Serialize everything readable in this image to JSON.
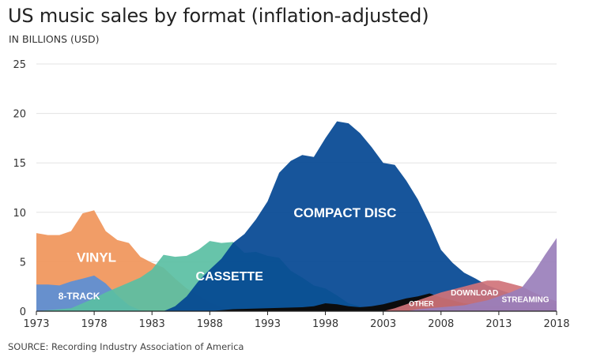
{
  "title": "US music sales by format (inflation-adjusted)",
  "subtitle": "IN BILLIONS (USD)",
  "source": "SOURCE: Recording Industry Association of America",
  "chart_data": {
    "type": "area",
    "stacked": false,
    "xlim": [
      1973,
      2018
    ],
    "ylim": [
      0,
      25
    ],
    "x_ticks": [
      "1973",
      "1978",
      "1983",
      "1988",
      "1993",
      "1998",
      "2003",
      "2008",
      "2013",
      "2018"
    ],
    "y_ticks": [
      "0",
      "5",
      "10",
      "15",
      "20",
      "25"
    ],
    "grid": true,
    "series": [
      {
        "name": "VINYL",
        "color": "#F0955A",
        "label_color": "#ffffff",
        "points": [
          [
            1973,
            7.9
          ],
          [
            1974,
            7.7
          ],
          [
            1975,
            7.7
          ],
          [
            1976,
            8.1
          ],
          [
            1977,
            9.9
          ],
          [
            1978,
            10.2
          ],
          [
            1979,
            8.1
          ],
          [
            1980,
            7.2
          ],
          [
            1981,
            6.9
          ],
          [
            1982,
            5.5
          ],
          [
            1983,
            4.9
          ],
          [
            1984,
            4.4
          ],
          [
            1985,
            3.3
          ],
          [
            1986,
            2.3
          ],
          [
            1987,
            1.6
          ],
          [
            1988,
            0.9
          ],
          [
            1989,
            0.4
          ],
          [
            1990,
            0.1
          ],
          [
            1991,
            0.0
          ],
          [
            2018,
            0.0
          ]
        ]
      },
      {
        "name": "8-TRACK",
        "color": "#5B8FD6",
        "label_color": "#ffffff",
        "points": [
          [
            1973,
            2.7
          ],
          [
            1974,
            2.7
          ],
          [
            1975,
            2.6
          ],
          [
            1976,
            3.0
          ],
          [
            1977,
            3.3
          ],
          [
            1978,
            3.6
          ],
          [
            1979,
            2.8
          ],
          [
            1980,
            1.6
          ],
          [
            1981,
            0.6
          ],
          [
            1982,
            0.1
          ],
          [
            1983,
            0.0
          ],
          [
            2018,
            0.0
          ]
        ]
      },
      {
        "name": "CASSETTE",
        "color": "#5ABFA3",
        "label_color": "#ffffff",
        "points": [
          [
            1973,
            0.0
          ],
          [
            1976,
            0.3
          ],
          [
            1977,
            0.8
          ],
          [
            1978,
            1.3
          ],
          [
            1979,
            1.9
          ],
          [
            1980,
            2.4
          ],
          [
            1981,
            2.9
          ],
          [
            1982,
            3.4
          ],
          [
            1983,
            4.2
          ],
          [
            1984,
            5.7
          ],
          [
            1985,
            5.5
          ],
          [
            1986,
            5.6
          ],
          [
            1987,
            6.2
          ],
          [
            1988,
            7.1
          ],
          [
            1989,
            6.9
          ],
          [
            1990,
            7.0
          ],
          [
            1991,
            5.9
          ],
          [
            1992,
            6.0
          ],
          [
            1993,
            5.6
          ],
          [
            1994,
            5.4
          ],
          [
            1995,
            4.1
          ],
          [
            1996,
            3.4
          ],
          [
            1997,
            2.6
          ],
          [
            1998,
            2.3
          ],
          [
            1999,
            1.6
          ],
          [
            2000,
            0.8
          ],
          [
            2001,
            0.5
          ],
          [
            2002,
            0.3
          ],
          [
            2003,
            0.2
          ],
          [
            2004,
            0.1
          ],
          [
            2005,
            0.0
          ],
          [
            2018,
            0.0
          ]
        ]
      },
      {
        "name": "COMPACT DISC",
        "color": "#034693",
        "label_color": "#ffffff",
        "points": [
          [
            1984,
            0.0
          ],
          [
            1985,
            0.5
          ],
          [
            1986,
            1.5
          ],
          [
            1987,
            3.0
          ],
          [
            1988,
            4.2
          ],
          [
            1989,
            5.3
          ],
          [
            1990,
            6.9
          ],
          [
            1991,
            7.8
          ],
          [
            1992,
            9.3
          ],
          [
            1993,
            11.1
          ],
          [
            1994,
            14.0
          ],
          [
            1995,
            15.2
          ],
          [
            1996,
            15.8
          ],
          [
            1997,
            15.6
          ],
          [
            1998,
            17.5
          ],
          [
            1999,
            19.2
          ],
          [
            2000,
            19.0
          ],
          [
            2001,
            18.0
          ],
          [
            2002,
            16.6
          ],
          [
            2003,
            15.0
          ],
          [
            2004,
            14.8
          ],
          [
            2005,
            13.2
          ],
          [
            2006,
            11.3
          ],
          [
            2007,
            8.9
          ],
          [
            2008,
            6.2
          ],
          [
            2009,
            4.9
          ],
          [
            2010,
            3.9
          ],
          [
            2011,
            3.3
          ],
          [
            2012,
            2.6
          ],
          [
            2013,
            2.2
          ],
          [
            2014,
            1.8
          ],
          [
            2015,
            1.5
          ],
          [
            2016,
            1.2
          ],
          [
            2017,
            1.0
          ],
          [
            2018,
            0.7
          ]
        ]
      },
      {
        "name": "OTHER",
        "color": "#0c0c0c",
        "label_color": "#ffffff",
        "points": [
          [
            1988,
            0.0
          ],
          [
            1989,
            0.1
          ],
          [
            1990,
            0.2
          ],
          [
            1993,
            0.3
          ],
          [
            1996,
            0.4
          ],
          [
            1997,
            0.5
          ],
          [
            1998,
            0.8
          ],
          [
            1999,
            0.7
          ],
          [
            2000,
            0.5
          ],
          [
            2001,
            0.4
          ],
          [
            2002,
            0.5
          ],
          [
            2003,
            0.7
          ],
          [
            2004,
            1.0
          ],
          [
            2005,
            1.3
          ],
          [
            2006,
            1.5
          ],
          [
            2007,
            1.8
          ],
          [
            2008,
            1.4
          ],
          [
            2009,
            1.1
          ],
          [
            2010,
            0.8
          ],
          [
            2011,
            0.7
          ],
          [
            2012,
            0.6
          ],
          [
            2013,
            0.5
          ],
          [
            2015,
            0.4
          ],
          [
            2018,
            0.3
          ]
        ]
      },
      {
        "name": "DOWNLOAD",
        "color": "#D0737A",
        "label_color": "#ffffff",
        "points": [
          [
            2003,
            0.0
          ],
          [
            2004,
            0.3
          ],
          [
            2005,
            0.7
          ],
          [
            2006,
            1.1
          ],
          [
            2007,
            1.5
          ],
          [
            2008,
            1.9
          ],
          [
            2009,
            2.2
          ],
          [
            2010,
            2.5
          ],
          [
            2011,
            2.8
          ],
          [
            2012,
            3.1
          ],
          [
            2013,
            3.1
          ],
          [
            2014,
            2.8
          ],
          [
            2015,
            2.5
          ],
          [
            2016,
            1.9
          ],
          [
            2017,
            1.4
          ],
          [
            2018,
            1.0
          ]
        ]
      },
      {
        "name": "STREAMING",
        "color": "#9A7FBB",
        "label_color": "#ffffff",
        "points": [
          [
            2005,
            0.0
          ],
          [
            2006,
            0.2
          ],
          [
            2008,
            0.4
          ],
          [
            2010,
            0.6
          ],
          [
            2012,
            1.1
          ],
          [
            2013,
            1.5
          ],
          [
            2014,
            1.9
          ],
          [
            2015,
            2.4
          ],
          [
            2016,
            3.9
          ],
          [
            2017,
            5.7
          ],
          [
            2018,
            7.4
          ]
        ]
      }
    ],
    "labels": [
      {
        "text": "VINYL",
        "x": 1978.2,
        "y": 5.0,
        "size": 17
      },
      {
        "text": "8-TRACK",
        "x": 1976.7,
        "y": 1.2,
        "size": 12
      },
      {
        "text": "CASSETTE",
        "x": 1989.7,
        "y": 3.1,
        "size": 16
      },
      {
        "text": "COMPACT DISC",
        "x": 1999.7,
        "y": 9.5,
        "size": 17
      },
      {
        "text": "OTHER",
        "x": 2006.3,
        "y": 0.5,
        "size": 9
      },
      {
        "text": "DOWNLOAD",
        "x": 2010.9,
        "y": 1.6,
        "size": 10
      },
      {
        "text": "STREAMING",
        "x": 2015.3,
        "y": 0.9,
        "size": 10
      }
    ]
  }
}
